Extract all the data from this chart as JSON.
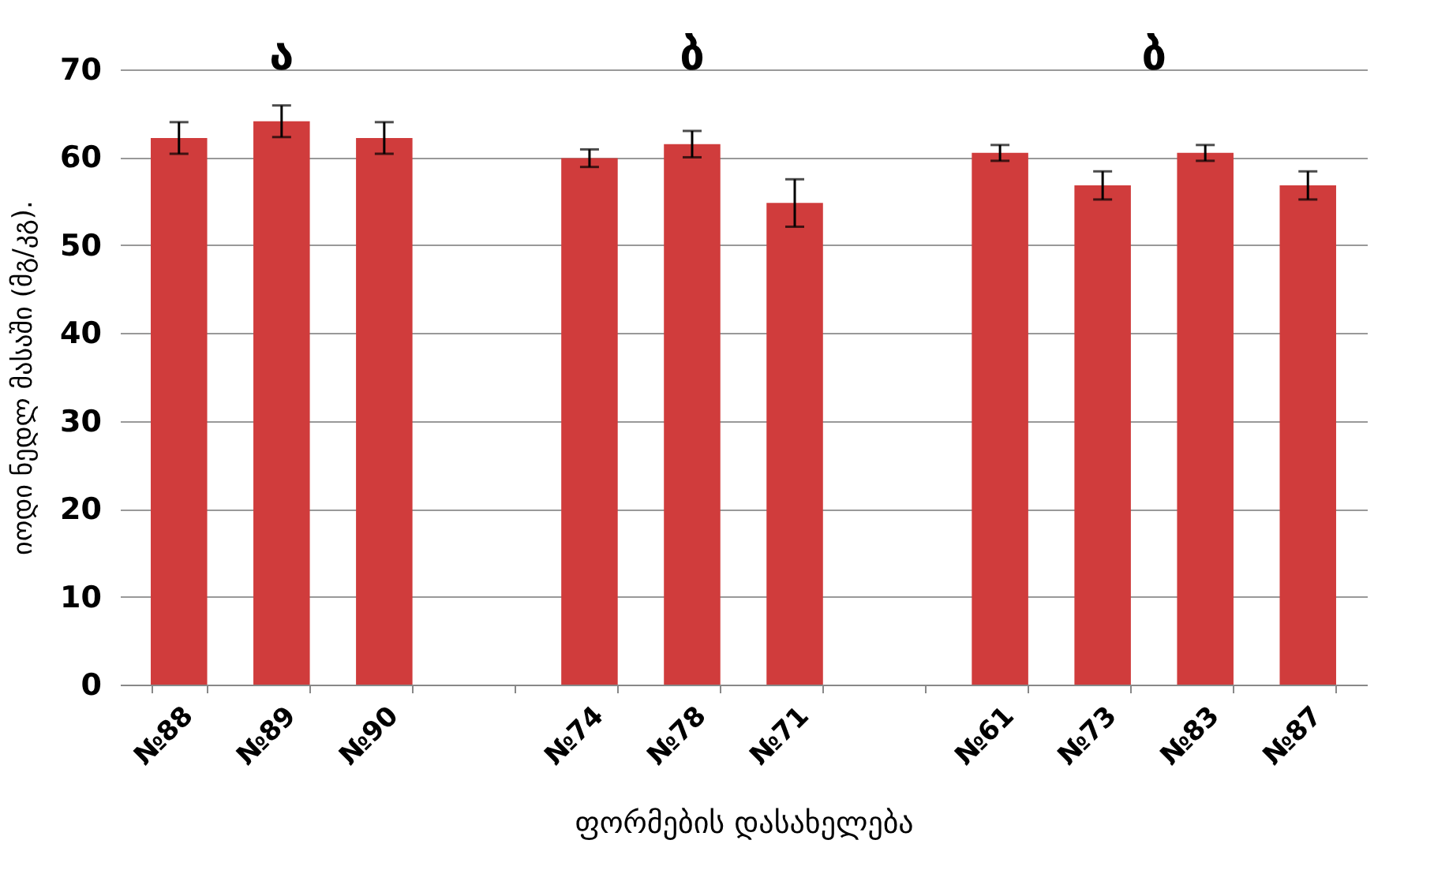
{
  "chart_data": {
    "type": "bar",
    "categories": [
      "№88",
      "№89",
      "№90",
      null,
      "№74",
      "№78",
      "№71",
      null,
      "№61",
      "№73",
      "№83",
      "№87"
    ],
    "values": [
      62.2,
      64.1,
      62.2,
      null,
      59.9,
      61.5,
      54.8,
      null,
      60.5,
      56.8,
      60.5,
      56.8
    ],
    "errors": [
      1.8,
      1.8,
      1.8,
      null,
      1.0,
      1.5,
      2.7,
      null,
      0.9,
      1.6,
      0.9,
      1.6
    ],
    "color": "#d03c3c",
    "xlabel": "ფორმების დასახელება",
    "ylabel": "იოდი ნედლ მასაში (მგ/კგ).",
    "ylim": [
      0,
      70
    ],
    "yticks": [
      0,
      10,
      20,
      30,
      40,
      50,
      60,
      70
    ],
    "grid": "y",
    "annotations": [
      "ა",
      "ბ",
      "ბ"
    ]
  }
}
